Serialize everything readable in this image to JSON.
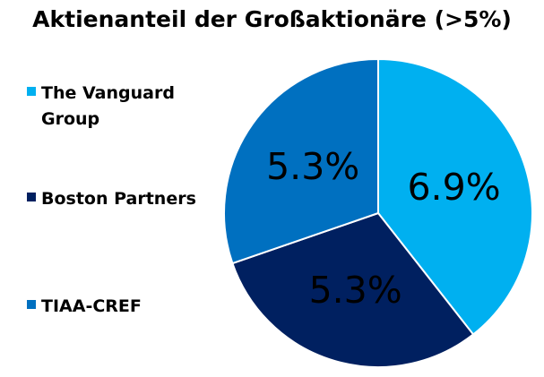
{
  "chart_data": {
    "type": "pie",
    "title": "Aktienanteil der Großaktionäre (>5%)",
    "slices": [
      {
        "name": "The Vanguard Group",
        "value": 6.9,
        "label": "6.9%",
        "color": "#00b0f0"
      },
      {
        "name": "Boston Partners",
        "value": 5.3,
        "label": "5.3%",
        "color": "#002060"
      },
      {
        "name": "TIAA-CREF",
        "value": 5.3,
        "label": "5.3%",
        "color": "#0070c0"
      }
    ],
    "legend_position": "left",
    "start_angle_deg": 0,
    "direction": "clockwise"
  }
}
